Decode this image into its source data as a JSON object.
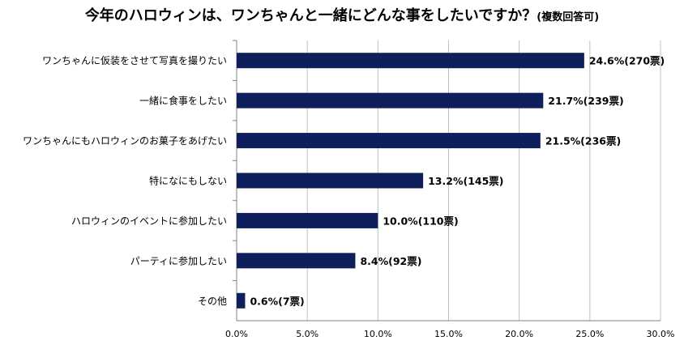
{
  "chart_data": {
    "type": "bar",
    "orientation": "horizontal",
    "title": "今年のハロウィンは、ワンちゃんと一緒にどんな事をしたいですか？",
    "subtitle": "(複数回答可)",
    "categories": [
      "ワンちゃんに仮装をさせて写真を撮りたい",
      "一緒に食事をしたい",
      "ワンちゃんにもハロウィンのお菓子をあげたい",
      "特になにもしない",
      "ハロウィンのイベントに参加したい",
      "パーティに参加したい",
      "その他"
    ],
    "values": [
      24.6,
      21.7,
      21.5,
      13.2,
      10.0,
      8.4,
      0.6
    ],
    "data_labels": [
      "24.6%(270票)",
      "21.7%(239票)",
      "21.5%(236票)",
      "13.2%(145票)",
      "10.0%(110票)",
      "8.4%(92票)",
      "0.6%(7票)"
    ],
    "xlim": [
      0,
      30
    ],
    "x_ticks": [
      0,
      5,
      10,
      15,
      20,
      25,
      30
    ],
    "x_tick_labels": [
      "0.0%",
      "5.0%",
      "10.0%",
      "15.0%",
      "20.0%",
      "25.0%",
      "30.0%"
    ],
    "xlabel": "",
    "ylabel": "",
    "grid": true,
    "bar_color": "#0e1f5b",
    "grid_color": "#bfbfbf"
  }
}
